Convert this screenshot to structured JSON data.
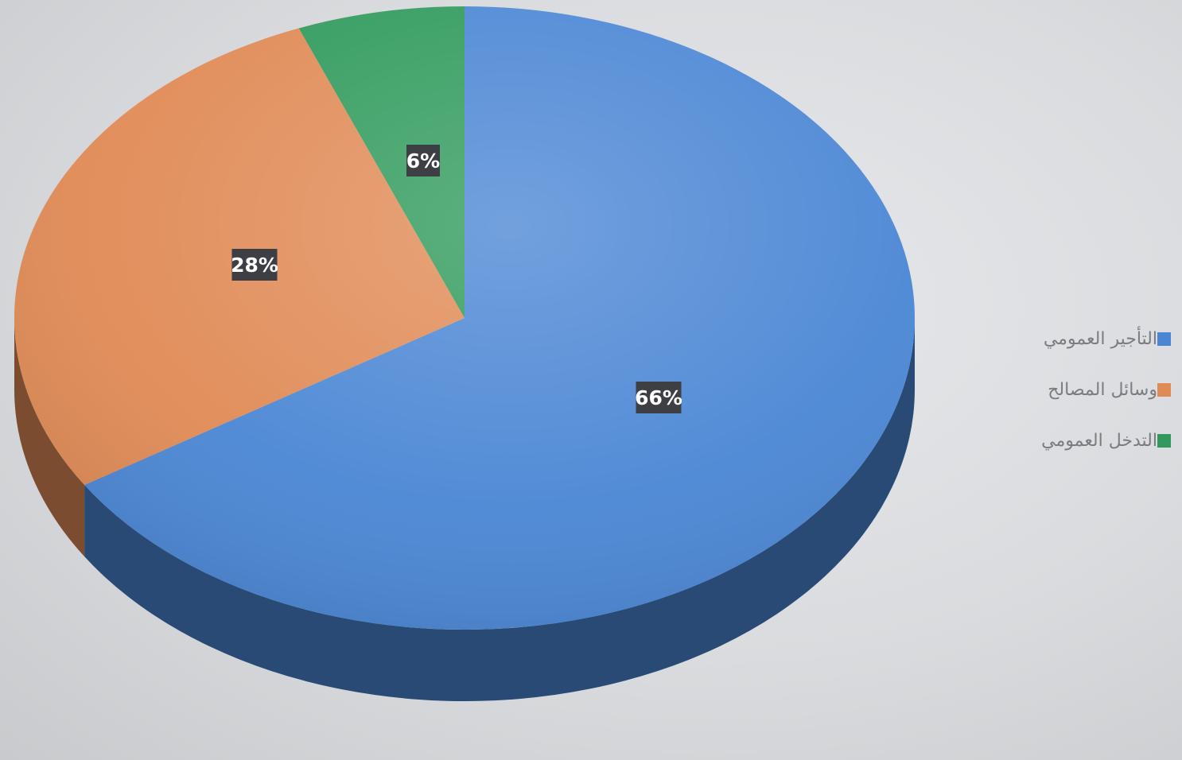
{
  "chart_data": {
    "type": "pie",
    "style": "3d",
    "categories": [
      "التأجير العمومي",
      "وسائل المصالح",
      "التدخل العمومي"
    ],
    "values": [
      66,
      28,
      6
    ],
    "data_labels": [
      "66%",
      "28%",
      "6%"
    ],
    "colors": [
      "#4a86d4",
      "#e08a55",
      "#2f9a5b"
    ],
    "legend": "right",
    "title": ""
  }
}
